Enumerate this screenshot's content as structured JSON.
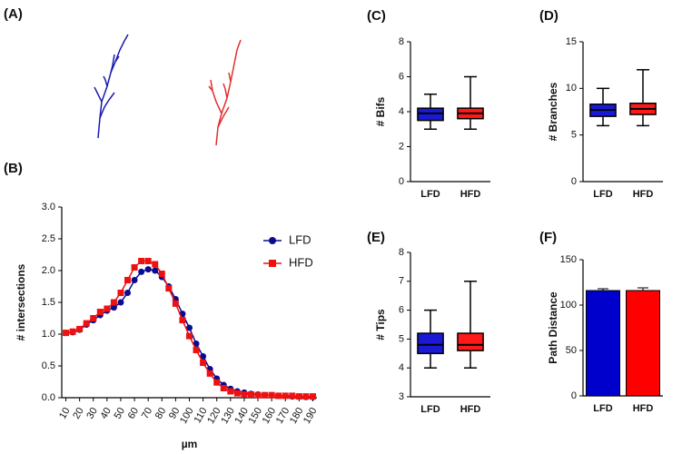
{
  "panel_labels": [
    "(A)",
    "(B)",
    "(C)",
    "(D)",
    "(E)",
    "(F)"
  ],
  "chart_data": [
    {
      "type": "line",
      "xlabel": "µm",
      "ylabel": "# intersections",
      "x": [
        10,
        15,
        20,
        25,
        30,
        35,
        40,
        45,
        50,
        55,
        60,
        65,
        70,
        75,
        80,
        85,
        90,
        95,
        100,
        105,
        110,
        115,
        120,
        125,
        130,
        135,
        140,
        145,
        150,
        155,
        160,
        165,
        170,
        175,
        180,
        185,
        190
      ],
      "series": [
        {
          "name": "LFD",
          "color": "#0b0b8f",
          "marker": "circle",
          "values": [
            1.02,
            1.03,
            1.07,
            1.15,
            1.22,
            1.3,
            1.37,
            1.42,
            1.5,
            1.65,
            1.85,
            1.98,
            2.02,
            2.0,
            1.9,
            1.75,
            1.55,
            1.32,
            1.1,
            0.85,
            0.65,
            0.45,
            0.3,
            0.2,
            0.14,
            0.1,
            0.08,
            0.06,
            0.05,
            0.04,
            0.04,
            0.03,
            0.03,
            0.02,
            0.02,
            0.01,
            0.01
          ]
        },
        {
          "name": "HFD",
          "color": "#ee1111",
          "marker": "square",
          "values": [
            1.02,
            1.04,
            1.08,
            1.17,
            1.25,
            1.35,
            1.4,
            1.5,
            1.65,
            1.85,
            2.05,
            2.15,
            2.15,
            2.1,
            1.95,
            1.72,
            1.48,
            1.22,
            0.97,
            0.75,
            0.55,
            0.38,
            0.24,
            0.15,
            0.1,
            0.07,
            0.05,
            0.05,
            0.04,
            0.04,
            0.04,
            0.03,
            0.03,
            0.03,
            0.02,
            0.02,
            0.02
          ]
        }
      ],
      "xlim": [
        7,
        193
      ],
      "xticks": [
        10,
        20,
        30,
        40,
        50,
        60,
        70,
        80,
        90,
        100,
        110,
        120,
        130,
        140,
        150,
        160,
        170,
        180,
        190
      ],
      "ylim": [
        0,
        3
      ],
      "yticks": [
        {
          "value": 0,
          "label": "0.0"
        },
        0.5,
        {
          "value": 1,
          "label": "1.0"
        },
        1.5,
        {
          "value": 2,
          "label": "2.0"
        },
        2.5,
        {
          "value": 3,
          "label": "3.0"
        }
      ],
      "legend": "upper right"
    },
    {
      "type": "box",
      "ylabel": "# Bifs",
      "categories": [
        "LFD",
        "HFD"
      ],
      "colors": [
        "#1a1ad6",
        "#ff1a1a"
      ],
      "boxes": [
        {
          "min": 3,
          "q1": 3.5,
          "median": 3.9,
          "q3": 4.2,
          "max": 5
        },
        {
          "min": 3,
          "q1": 3.6,
          "median": 3.9,
          "q3": 4.2,
          "max": 6
        }
      ],
      "ylim": [
        0,
        8
      ],
      "yticks": [
        0,
        2,
        4,
        6,
        8
      ]
    },
    {
      "type": "box",
      "ylabel": "# Branches",
      "categories": [
        "LFD",
        "HFD"
      ],
      "colors": [
        "#1a1ad6",
        "#ff1a1a"
      ],
      "boxes": [
        {
          "min": 6,
          "q1": 7,
          "median": 7.7,
          "q3": 8.3,
          "max": 10
        },
        {
          "min": 6,
          "q1": 7.2,
          "median": 7.8,
          "q3": 8.4,
          "max": 12
        }
      ],
      "ylim": [
        0,
        15
      ],
      "yticks": [
        0,
        5,
        10,
        15
      ]
    },
    {
      "type": "box",
      "ylabel": "# Tips",
      "categories": [
        "LFD",
        "HFD"
      ],
      "colors": [
        "#1a1ad6",
        "#ff1a1a"
      ],
      "boxes": [
        {
          "min": 4,
          "q1": 4.5,
          "median": 4.8,
          "q3": 5.2,
          "max": 6
        },
        {
          "min": 4,
          "q1": 4.6,
          "median": 4.8,
          "q3": 5.2,
          "max": 7
        }
      ],
      "ylim": [
        3,
        8
      ],
      "yticks": [
        3,
        4,
        5,
        6,
        7,
        8
      ]
    },
    {
      "type": "bar",
      "ylabel": "Path Distance",
      "categories": [
        "LFD",
        "HFD"
      ],
      "colors": [
        "#0000cc",
        "#ff0000"
      ],
      "values": [
        116,
        116
      ],
      "errors": [
        2,
        3
      ],
      "ylim": [
        0,
        150
      ],
      "yticks": [
        0,
        50,
        100,
        150
      ]
    }
  ]
}
